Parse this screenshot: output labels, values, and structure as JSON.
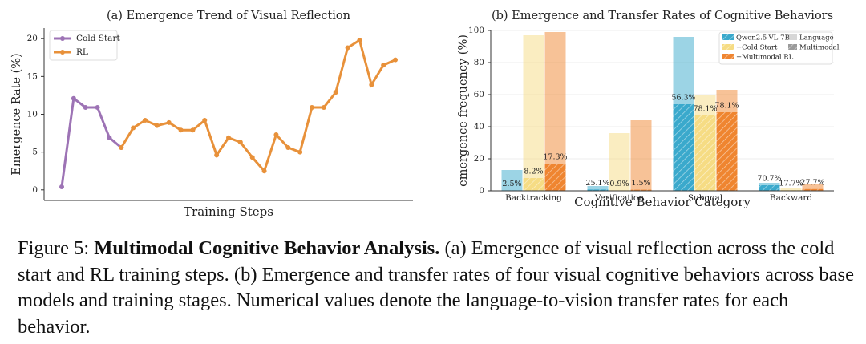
{
  "chart_data": [
    {
      "type": "line",
      "title": "(a) Emergence Trend of Visual Reflection",
      "xlabel": "Training Steps",
      "ylabel": "Emergence Rate (%)",
      "series": [
        {
          "name": "Cold Start",
          "color": "#9d73b5",
          "values": [
            0.4,
            12.1,
            10.9,
            10.9,
            6.9,
            5.6,
            null,
            null,
            null,
            null,
            null,
            null,
            null,
            null,
            null,
            null,
            null,
            null,
            null,
            null,
            null,
            null,
            null,
            null,
            null,
            null,
            null,
            null,
            null
          ]
        },
        {
          "name": "RL",
          "color": "#e8913a",
          "values": [
            null,
            null,
            null,
            null,
            null,
            5.6,
            8.2,
            9.2,
            8.5,
            8.9,
            7.9,
            7.9,
            9.2,
            4.6,
            6.9,
            6.3,
            4.3,
            2.5,
            7.3,
            5.6,
            5.0,
            10.9,
            10.9,
            12.9,
            18.8,
            19.8,
            13.9,
            16.5,
            17.2
          ]
        }
      ],
      "ylim": [
        -1.4,
        21.4
      ],
      "yticks": [
        0,
        5,
        10,
        15,
        20
      ],
      "grid": false,
      "legend": "upper left"
    },
    {
      "type": "bar",
      "title": "(b) Emergence and Transfer Rates of Cognitive Behaviors",
      "xlabel": "Cognitive Behavior Category",
      "ylabel": "emergence frequency (%)",
      "categories": [
        "Backtracking",
        "Verification",
        "Subgoal",
        "Backward"
      ],
      "series": [
        {
          "name": "Qwen2.5-VL-7B",
          "color": "#3aa9cc",
          "values": [
            13,
            3,
            96,
            5
          ],
          "multimodal_values": [
            0.3,
            0.8,
            54,
            3.5
          ],
          "transfer_rate_labels": [
            "2.5%",
            "25.1%",
            "56.3%",
            "70.7%"
          ]
        },
        {
          "name": "+Cold Start",
          "color": "#f6dc84",
          "values": [
            97,
            36,
            60,
            2
          ],
          "multimodal_values": [
            8,
            0.3,
            47,
            0.4
          ],
          "transfer_rate_labels": [
            "8.2%",
            "0.9%",
            "78.1%",
            "17.7%"
          ]
        },
        {
          "name": "+Multimodal RL",
          "color": "#ef8530",
          "values": [
            99,
            44,
            63,
            4
          ],
          "multimodal_values": [
            17,
            0.7,
            49,
            1.1
          ],
          "transfer_rate_labels": [
            "17.3%",
            "1.5%",
            "78.1%",
            "27.7%"
          ]
        }
      ],
      "styles": [
        "Language",
        "Multimodal"
      ],
      "ylim": [
        0,
        100
      ],
      "yticks": [
        0,
        20,
        40,
        60,
        80,
        100
      ],
      "grid": true,
      "legend": "upper right"
    }
  ],
  "caption": {
    "label": "Figure 5:",
    "title": "Multimodal Cognitive Behavior Analysis.",
    "text": "(a) Emergence of visual reflection across the cold start and RL training steps. (b) Emergence and transfer rates of four visual cognitive behaviors across base models and training stages. Numerical values denote the language-to-vision transfer rates for each behavior."
  }
}
